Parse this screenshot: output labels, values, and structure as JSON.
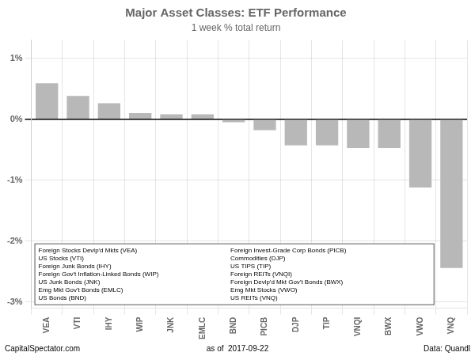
{
  "chart_data": {
    "type": "bar",
    "title": "Major Asset Classes: ETF Performance",
    "subtitle": "1 week % total return",
    "categories": [
      "VEA",
      "VTI",
      "IHY",
      "WIP",
      "JNK",
      "EMLC",
      "BND",
      "PICB",
      "DJP",
      "TIP",
      "VNQI",
      "BWX",
      "VWO",
      "VNQ"
    ],
    "values": [
      0.59,
      0.38,
      0.26,
      0.1,
      0.08,
      0.08,
      -0.05,
      -0.18,
      -0.43,
      -0.43,
      -0.47,
      -0.47,
      -1.12,
      -2.44
    ],
    "color": "#b8b8b8",
    "ylim": [
      -3.1,
      1.3
    ],
    "yticks": [
      {
        "value": -3.0,
        "label": "-3%"
      },
      {
        "value": -2.0,
        "label": "-2%"
      },
      {
        "value": -1.0,
        "label": "-1%"
      },
      {
        "value": 0.0,
        "label": "0%"
      },
      {
        "value": 1.0,
        "label": "1%"
      }
    ],
    "grid": true,
    "annotations": [
      "Foreign Stocks Devlp'd Mkts (VEA)",
      "US Stocks (VTI)",
      "Foreign Junk Bonds (IHY)",
      "Foreign Gov't Inflation-Linked Bonds (WIP)",
      "US Junk Bonds (JNK)",
      "Emg Mkt Gov't Bonds (EMLC)",
      "US Bonds (BND)",
      "Foreign Invest-Grade Corp Bonds (PICB)",
      "Commodities (DJP)",
      "US TIPS (TIP)",
      "Foreign REITs (VNQI)",
      "Foreign Devlp'd Mkt Gov't Bonds (BWX)",
      "Emg Mkt Stocks (VWO)",
      "US REITs (VNQ)"
    ],
    "footer": [
      "CapitalSpectator.com",
      "as of  2017-09-22",
      "Data: Quandl"
    ]
  }
}
